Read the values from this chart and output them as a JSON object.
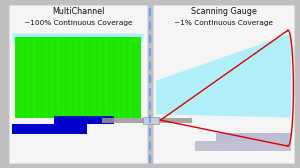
{
  "bg_color": "#c0c0c0",
  "left_panel_bg": "#f5f5f5",
  "right_panel_bg": "#f5f5f5",
  "cyan_light": "#b0eef8",
  "green_fill": "#22ee00",
  "blue_bar_color": "#0000cc",
  "dashed_line_color": "#5599ff",
  "red_line_color": "#dd0000",
  "title_left_line1": "MultiChannel",
  "title_left_line2": "~100% Continuous Coverage",
  "title_right_line1": "Scanning Gauge",
  "title_right_line2": "~1% Continuous Coverage",
  "title_fontsize": 5.8,
  "figsize": [
    3.0,
    1.68
  ],
  "dpi": 100
}
